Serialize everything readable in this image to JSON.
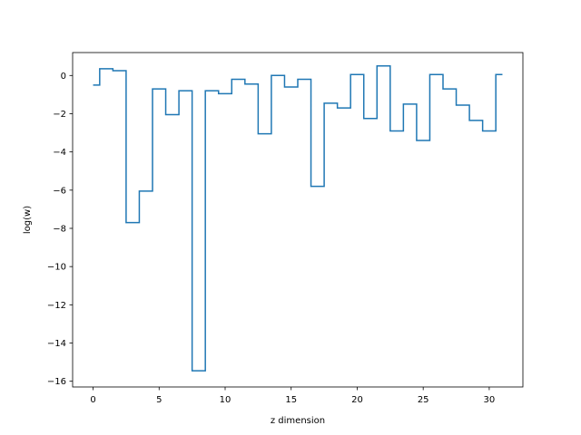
{
  "chart_data": {
    "type": "line",
    "drawstyle": "steps-mid",
    "title": "",
    "xlabel": "z dimension",
    "ylabel": "log(w)",
    "xlim": [
      -1.55,
      32.55
    ],
    "ylim": [
      -16.3,
      1.2
    ],
    "xticks": [
      0,
      5,
      10,
      15,
      20,
      25,
      30
    ],
    "yticks": [
      0,
      -2,
      -4,
      -6,
      -8,
      -10,
      -12,
      -14,
      -16
    ],
    "grid": false,
    "legend": "none",
    "color": "#1f77b4",
    "series": [
      {
        "x": [
          0,
          1,
          2,
          3,
          4,
          5,
          6,
          7,
          8,
          9,
          10,
          11,
          12,
          13,
          14,
          15,
          16,
          17,
          18,
          19,
          20,
          21,
          22,
          23,
          24,
          25,
          26,
          27,
          28,
          29,
          30,
          31
        ],
        "values": [
          -0.5,
          0.35,
          0.25,
          -7.7,
          -6.05,
          -0.7,
          -2.05,
          -0.8,
          -15.45,
          -0.8,
          -0.95,
          -0.2,
          -0.45,
          -3.05,
          0.0,
          -0.6,
          -0.2,
          -5.8,
          -1.45,
          -1.7,
          0.05,
          -2.25,
          0.5,
          -2.9,
          -1.5,
          -3.4,
          0.05,
          -0.7,
          -1.55,
          -2.35,
          -2.9,
          0.05
        ]
      }
    ]
  }
}
